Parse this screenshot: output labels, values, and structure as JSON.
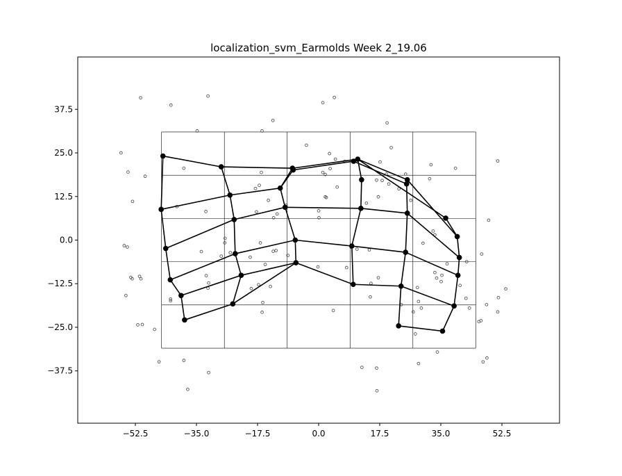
{
  "chart_data": {
    "type": "scatter",
    "title": "localization_svm_Earmolds Week 2_19.06",
    "xlim": [
      -69,
      69
    ],
    "ylim": [
      -52.5,
      52.5
    ],
    "xticks": [
      -52.5,
      -35.0,
      -17.5,
      0.0,
      17.5,
      35.0,
      52.5
    ],
    "yticks": [
      -37.5,
      -25.0,
      -12.5,
      0.0,
      12.5,
      25.0,
      37.5
    ],
    "xtick_labels": [
      "−52.5",
      "−35.0",
      "−17.5",
      "0.0",
      "17.5",
      "35.0",
      "52.5"
    ],
    "ytick_labels": [
      "−37.5",
      "−25.0",
      "−12.5",
      "0.0",
      "12.5",
      "25.0",
      "37.5"
    ],
    "grid": {
      "x": [
        -45,
        -27,
        -9,
        9,
        27,
        45
      ],
      "y": [
        -31,
        -18.6,
        -6.2,
        6.2,
        18.6,
        31
      ]
    },
    "nodes": [
      [
        -44.6,
        24.1
      ],
      [
        -27.9,
        21.0
      ],
      [
        -7.5,
        20.6
      ],
      [
        11.2,
        23.2
      ],
      [
        25.4,
        17.3
      ],
      [
        -45.1,
        8.8
      ],
      [
        -25.4,
        12.9
      ],
      [
        -11.0,
        14.9
      ],
      [
        12.3,
        17.3
      ],
      [
        25.2,
        16.1
      ],
      [
        -43.8,
        -2.4
      ],
      [
        -24.2,
        5.9
      ],
      [
        -9.6,
        9.4
      ],
      [
        12.1,
        9.1
      ],
      [
        25.4,
        7.7
      ],
      [
        -42.5,
        -11.4
      ],
      [
        -23.9,
        -3.9
      ],
      [
        -6.7,
        0.0
      ],
      [
        9.5,
        -1.7
      ],
      [
        24.9,
        -3.5
      ],
      [
        -39.4,
        -15.9
      ],
      [
        -22.2,
        -10.1
      ],
      [
        -6.5,
        -6.5
      ],
      [
        9.9,
        -12.7
      ],
      [
        23.6,
        -13.2
      ],
      [
        -38.4,
        -22.9
      ],
      [
        -24.6,
        -18.3
      ],
      [
        22.9,
        -24.6
      ],
      [
        -7.3,
        20.1
      ],
      [
        10.0,
        22.6
      ],
      [
        36.4,
        6.3
      ],
      [
        39.7,
        1.0
      ],
      [
        40.3,
        -5.0
      ],
      [
        39.9,
        -10.1
      ],
      [
        38.8,
        -18.9
      ],
      [
        35.5,
        -26.1
      ]
    ],
    "edges": [
      [
        0,
        1
      ],
      [
        1,
        2
      ],
      [
        2,
        3
      ],
      [
        3,
        4
      ],
      [
        0,
        5
      ],
      [
        5,
        10
      ],
      [
        10,
        15
      ],
      [
        15,
        20
      ],
      [
        20,
        25
      ],
      [
        1,
        6
      ],
      [
        6,
        11
      ],
      [
        11,
        16
      ],
      [
        16,
        21
      ],
      [
        21,
        26
      ],
      [
        2,
        7
      ],
      [
        7,
        12
      ],
      [
        12,
        17
      ],
      [
        17,
        22
      ],
      [
        3,
        8
      ],
      [
        8,
        13
      ],
      [
        13,
        18
      ],
      [
        18,
        23
      ],
      [
        4,
        9
      ],
      [
        9,
        14
      ],
      [
        14,
        19
      ],
      [
        19,
        24
      ],
      [
        24,
        27
      ],
      [
        5,
        6
      ],
      [
        6,
        7
      ],
      [
        7,
        28
      ],
      [
        28,
        29
      ],
      [
        29,
        9
      ],
      [
        10,
        11
      ],
      [
        11,
        12
      ],
      [
        12,
        13
      ],
      [
        13,
        14
      ],
      [
        15,
        16
      ],
      [
        16,
        17
      ],
      [
        17,
        18
      ],
      [
        18,
        19
      ],
      [
        20,
        21
      ],
      [
        21,
        22
      ],
      [
        22,
        23
      ],
      [
        23,
        24
      ],
      [
        25,
        26
      ],
      [
        26,
        22
      ],
      [
        3,
        30
      ],
      [
        30,
        31
      ],
      [
        31,
        32
      ],
      [
        32,
        33
      ],
      [
        33,
        34
      ],
      [
        34,
        35
      ],
      [
        4,
        31
      ],
      [
        14,
        32
      ],
      [
        19,
        33
      ],
      [
        24,
        34
      ],
      [
        27,
        35
      ]
    ],
    "scatter": [
      [
        -51.0,
        40.8
      ],
      [
        -42.3,
        38.7
      ],
      [
        -31.7,
        41.3
      ],
      [
        1.2,
        39.4
      ],
      [
        4.5,
        40.9
      ],
      [
        -34.8,
        31.3
      ],
      [
        -16.2,
        31.3
      ],
      [
        -13.1,
        34.3
      ],
      [
        19.6,
        33.6
      ],
      [
        -56.6,
        25.0
      ],
      [
        -54.6,
        19.5
      ],
      [
        -49.7,
        18.3
      ],
      [
        -53.3,
        11.1
      ],
      [
        -38.6,
        20.6
      ],
      [
        -40.6,
        9.6
      ],
      [
        -32.3,
        8.2
      ],
      [
        -16.4,
        19.4
      ],
      [
        -17.0,
        15.7
      ],
      [
        -18.1,
        14.8
      ],
      [
        -14.4,
        11.4
      ],
      [
        -9.3,
        10.0
      ],
      [
        -11.9,
        7.5
      ],
      [
        -12.9,
        6.4
      ],
      [
        -17.8,
        8.1
      ],
      [
        -3.5,
        27.2
      ],
      [
        3.1,
        24.8
      ],
      [
        4.8,
        23.2
      ],
      [
        7.5,
        22.6
      ],
      [
        1.2,
        19.4
      ],
      [
        1.9,
        18.8
      ],
      [
        3.3,
        20.5
      ],
      [
        5.3,
        15.2
      ],
      [
        1.9,
        12.4
      ],
      [
        2.2,
        12.2
      ],
      [
        0.0,
        8.4
      ],
      [
        0.1,
        6.4
      ],
      [
        13.7,
        10.6
      ],
      [
        16.6,
        17.2
      ],
      [
        17.6,
        22.4
      ],
      [
        18.2,
        17.1
      ],
      [
        19.4,
        18.9
      ],
      [
        20.1,
        16.1
      ],
      [
        20.8,
        26.5
      ],
      [
        23.0,
        14.7
      ],
      [
        24.9,
        18.9
      ],
      [
        26.4,
        11.4
      ],
      [
        31.8,
        17.6
      ],
      [
        32.2,
        21.6
      ],
      [
        39.2,
        20.6
      ],
      [
        51.3,
        22.7
      ],
      [
        48.7,
        5.7
      ],
      [
        17.1,
        12.4
      ],
      [
        -33.6,
        -3.3
      ],
      [
        -27.9,
        -4.6
      ],
      [
        -26.8,
        0.5
      ],
      [
        -26.9,
        -0.8
      ],
      [
        -25.3,
        -3.6
      ],
      [
        -16.7,
        -0.8
      ],
      [
        -19.6,
        -4.9
      ],
      [
        -13.0,
        -3.2
      ],
      [
        -12.2,
        -3.0
      ],
      [
        -8.8,
        -4.4
      ],
      [
        -15.3,
        -7.0
      ],
      [
        -0.2,
        -7.7
      ],
      [
        8.0,
        -7.9
      ],
      [
        11.0,
        -2.6
      ],
      [
        14.5,
        -2.8
      ],
      [
        29.9,
        -0.9
      ],
      [
        32.8,
        2.6
      ],
      [
        33.3,
        1.5
      ],
      [
        36.8,
        -6.8
      ],
      [
        42.4,
        -6.2
      ],
      [
        46.7,
        -4.0
      ],
      [
        -54.8,
        -2.0
      ],
      [
        -55.7,
        -1.6
      ],
      [
        -53.8,
        -10.7
      ],
      [
        -53.4,
        -11.1
      ],
      [
        -51.3,
        -10.4
      ],
      [
        -50.9,
        -11.1
      ],
      [
        -32.2,
        -10.2
      ],
      [
        -31.5,
        -12.3
      ],
      [
        -31.7,
        -13.8
      ],
      [
        -19.3,
        -13.9
      ],
      [
        -17.2,
        -12.8
      ],
      [
        -13.8,
        -13.3
      ],
      [
        -16.0,
        -17.9
      ],
      [
        -16.2,
        -20.7
      ],
      [
        -42.4,
        -16.9
      ],
      [
        -42.4,
        -17.4
      ],
      [
        -50.5,
        -24.2
      ],
      [
        -51.8,
        -24.3
      ],
      [
        -47.0,
        -25.6
      ],
      [
        -55.2,
        -15.9
      ],
      [
        15.0,
        -12.4
      ],
      [
        17.1,
        -10.8
      ],
      [
        14.8,
        -16.3
      ],
      [
        23.7,
        -18.5
      ],
      [
        28.3,
        -13.6
      ],
      [
        28.6,
        -17.6
      ],
      [
        29.4,
        -19.5
      ],
      [
        27.1,
        -20.6
      ],
      [
        33.3,
        -9.3
      ],
      [
        33.8,
        -10.9
      ],
      [
        35.3,
        -10.1
      ],
      [
        35.1,
        -11.9
      ],
      [
        40.5,
        -13.0
      ],
      [
        42.2,
        -16.7
      ],
      [
        43.2,
        -19.5
      ],
      [
        48.1,
        -18.5
      ],
      [
        51.5,
        -16.5
      ],
      [
        53.6,
        -14.0
      ],
      [
        45.9,
        -23.4
      ],
      [
        46.5,
        -23.1
      ],
      [
        51.3,
        -20.6
      ],
      [
        4.2,
        -20.2
      ],
      [
        27.7,
        -26.9
      ],
      [
        -45.7,
        -34.9
      ],
      [
        -38.6,
        -34.5
      ],
      [
        -31.5,
        -38.0
      ],
      [
        12.4,
        -36.5
      ],
      [
        16.6,
        -36.7
      ],
      [
        16.7,
        -43.2
      ],
      [
        28.6,
        -35.4
      ],
      [
        34.0,
        -32.1
      ],
      [
        47.1,
        -34.9
      ],
      [
        48.2,
        -33.8
      ],
      [
        -37.5,
        -42.8
      ]
    ]
  }
}
